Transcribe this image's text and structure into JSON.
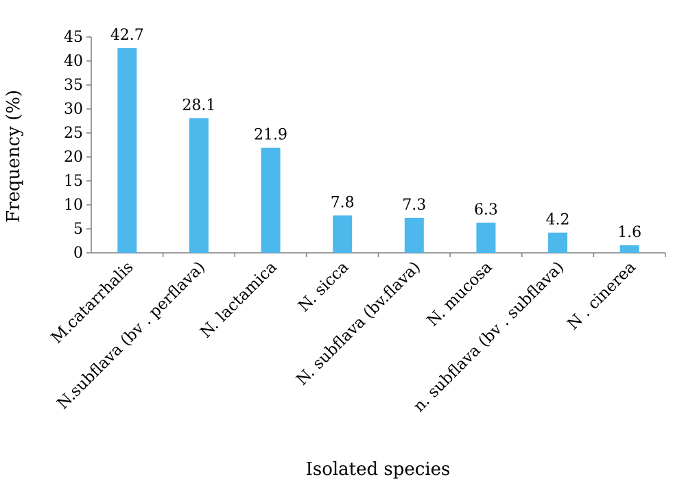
{
  "chart_data": {
    "type": "bar",
    "categories": [
      "M.catarrhalis",
      "N.subflava (bv . perflava)",
      "N. lactamica",
      "N. sicca",
      "N. subflava (bv.flava)",
      "N. mucosa",
      "n. subflava (bv . subflava)",
      "N . cinerea"
    ],
    "values": [
      42.7,
      28.1,
      21.9,
      7.8,
      7.3,
      6.3,
      4.2,
      1.6
    ],
    "data_labels": [
      "42.7",
      "28.1",
      "21.9",
      "7.8",
      "7.3",
      "6.3",
      "4.2",
      "1.6"
    ],
    "xlabel": "Isolated species",
    "ylabel": "Frequency (%)",
    "ylim": [
      0,
      45
    ],
    "yticks": [
      0,
      5,
      10,
      15,
      20,
      25,
      30,
      35,
      40,
      45
    ],
    "grid": false,
    "legend": "none",
    "bar_color": "#4db8ec"
  }
}
